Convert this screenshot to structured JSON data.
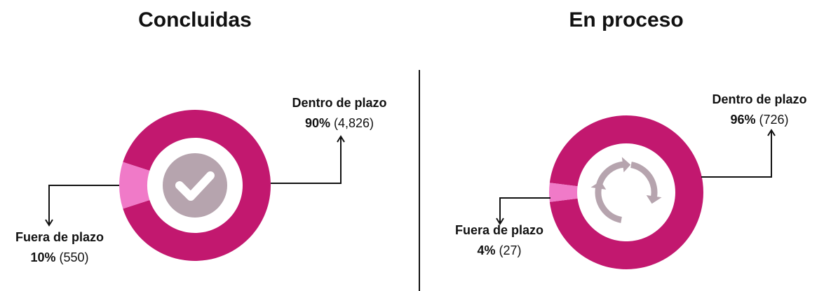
{
  "chart_data": [
    {
      "type": "donut",
      "title": "Concluidas",
      "categories": [
        "Dentro de plazo",
        "Fuera de plazo"
      ],
      "values": [
        90,
        10
      ],
      "value_labels": [
        "90%",
        "10%"
      ],
      "counts": [
        4826,
        550
      ],
      "count_labels": [
        "(4,826)",
        "(550)"
      ],
      "colors": [
        "#c2186f",
        "#f07ac8"
      ]
    },
    {
      "type": "donut",
      "title": "En proceso",
      "categories": [
        "Dentro de plazo",
        "Fuera de plazo"
      ],
      "values": [
        96,
        4
      ],
      "value_labels": [
        "96%",
        "4%"
      ],
      "counts": [
        726,
        27
      ],
      "count_labels": [
        "(726)",
        "(27)"
      ],
      "colors": [
        "#c2186f",
        "#f07ac8"
      ]
    }
  ]
}
